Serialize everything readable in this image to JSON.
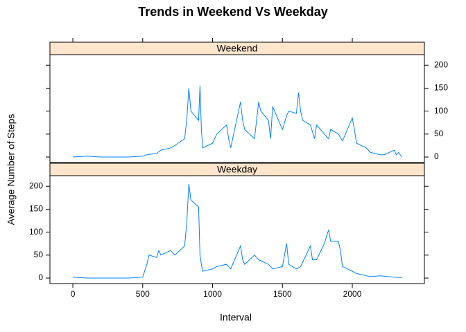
{
  "chart_data": {
    "type": "line",
    "title": "Trends in Weekend Vs Weekday",
    "xlabel": "Interval",
    "ylabel": "Average Number of Steps",
    "xlim": [
      -164,
      2516
    ],
    "xticks": [
      0,
      500,
      1000,
      1500,
      2000
    ],
    "ylim": [
      -12,
      223
    ],
    "yticks": [
      0,
      50,
      100,
      150,
      200
    ],
    "strip_color": "#ffe5cc",
    "series": [
      {
        "name": "Weekend",
        "color": "#0080ff",
        "x": [
          0,
          100,
          200,
          300,
          400,
          500,
          530,
          600,
          630,
          700,
          730,
          800,
          815,
          830,
          845,
          900,
          910,
          920,
          930,
          1000,
          1030,
          1100,
          1115,
          1130,
          1200,
          1215,
          1230,
          1300,
          1330,
          1345,
          1400,
          1415,
          1430,
          1500,
          1530,
          1545,
          1600,
          1615,
          1630,
          1645,
          1700,
          1730,
          1745,
          1800,
          1830,
          1845,
          1900,
          1930,
          2000,
          2015,
          2030,
          2100,
          2130,
          2200,
          2230,
          2300,
          2315,
          2330,
          2355
        ],
        "values": [
          0,
          2,
          0,
          0,
          0,
          2,
          5,
          8,
          15,
          20,
          25,
          40,
          80,
          150,
          100,
          80,
          155,
          60,
          20,
          30,
          50,
          70,
          40,
          20,
          120,
          80,
          60,
          40,
          120,
          100,
          80,
          40,
          110,
          60,
          90,
          100,
          95,
          140,
          100,
          80,
          70,
          40,
          70,
          50,
          40,
          60,
          50,
          35,
          85,
          60,
          30,
          20,
          10,
          5,
          5,
          15,
          5,
          10,
          0
        ]
      },
      {
        "name": "Weekday",
        "color": "#0080ff",
        "x": [
          0,
          100,
          200,
          300,
          400,
          500,
          530,
          545,
          600,
          615,
          630,
          700,
          730,
          800,
          815,
          830,
          845,
          900,
          910,
          920,
          930,
          1000,
          1030,
          1100,
          1130,
          1200,
          1215,
          1230,
          1300,
          1330,
          1400,
          1430,
          1500,
          1530,
          1545,
          1600,
          1630,
          1700,
          1715,
          1745,
          1800,
          1830,
          1845,
          1900,
          1915,
          1930,
          2000,
          2030,
          2100,
          2130,
          2200,
          2300,
          2355
        ],
        "values": [
          2,
          0,
          0,
          0,
          0,
          2,
          30,
          50,
          45,
          60,
          50,
          60,
          50,
          70,
          120,
          205,
          170,
          155,
          50,
          30,
          15,
          20,
          25,
          30,
          20,
          70,
          40,
          30,
          50,
          40,
          30,
          20,
          25,
          75,
          30,
          20,
          25,
          70,
          40,
          40,
          75,
          105,
          80,
          80,
          60,
          25,
          15,
          10,
          5,
          3,
          5,
          2,
          1
        ]
      }
    ]
  }
}
